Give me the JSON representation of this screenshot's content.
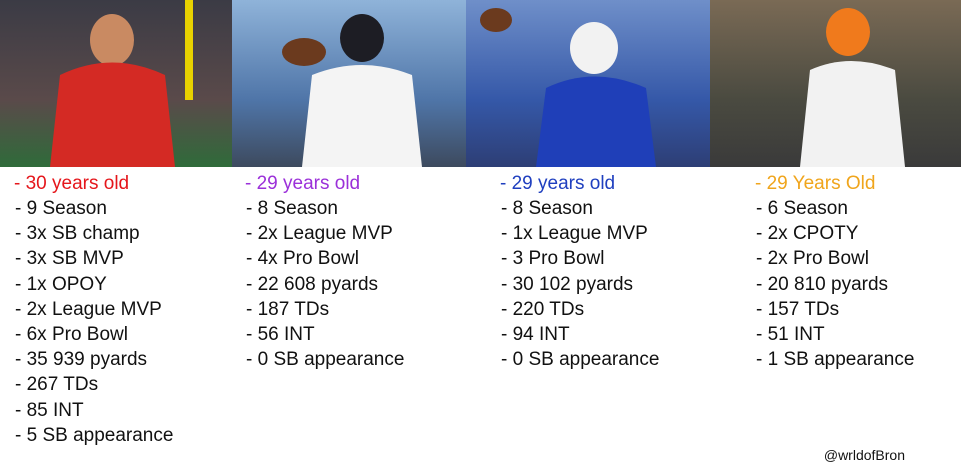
{
  "columns": [
    {
      "title": "- 30 years old",
      "color": "#e5161b",
      "items": [
        "- 9 Season",
        "- 3x SB champ",
        "- 3x SB MVP",
        "- 1x OPOY",
        "- 2x League MVP",
        "- 6x Pro Bowl",
        "- 35 939 pyards",
        "- 267 TDs",
        "- 85 INT",
        "- 5 SB appearance"
      ]
    },
    {
      "title": "- 29 years old",
      "color": "#9b30d9",
      "items": [
        "- 8 Season",
        "- 2x League MVP",
        "- 4x Pro Bowl",
        "- 22 608 pyards",
        "- 187 TDs",
        "- 56 INT",
        "- 0 SB appearance"
      ]
    },
    {
      "title": "- 29 years old",
      "color": "#1f3fbf",
      "items": [
        "- 8 Season",
        "- 1x League MVP",
        "- 3 Pro Bowl",
        "- 30 102 pyards",
        "- 220 TDs",
        "- 94 INT",
        "- 0 SB appearance"
      ]
    },
    {
      "title": "- 29 Years Old",
      "color": "#f0a51c",
      "items": [
        "- 6 Season",
        "- 2x CPOTY",
        "- 2x Pro Bowl",
        "- 20 810 pyards",
        "- 157 TDs",
        "- 51 INT",
        "- 1 SB appearance"
      ]
    }
  ],
  "credit": "@wrldofBron"
}
